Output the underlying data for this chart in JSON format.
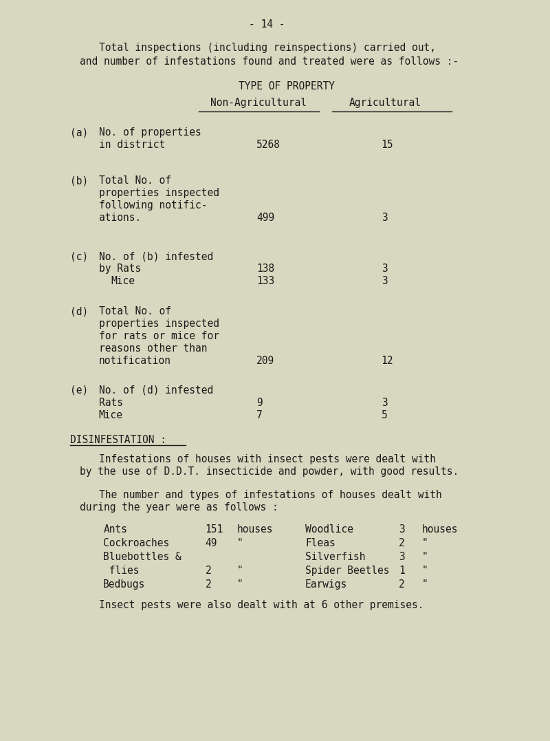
{
  "bg_color": "#d8d8c0",
  "text_color": "#1a1a1a",
  "page_number": "- 14 -",
  "intro_line1": "Total inspections (including reinspections) carried out,",
  "intro_line2": "and number of infestations found and treated were as follows :-",
  "header_type": "TYPE OF PROPERTY",
  "col1_header": "Non-Agricultural",
  "col2_header": "Agricultural",
  "disinf_header": "DISINFESTATION :",
  "disinf_para1_line1": "Infestations of houses with insect pests were dealt with",
  "disinf_para1_line2": "by the use of D.D.T. insecticide and powder, with good results.",
  "disinf_para2_line1": "The number and types of infestations of houses dealt with",
  "disinf_para2_line2": "during the year were as follows :",
  "pests_left": [
    {
      "name": "Ants",
      "count": "151",
      "unit": "houses"
    },
    {
      "name": "Cockroaches",
      "count": "49",
      "unit": "\""
    },
    {
      "name": "Bluebottles &",
      "count": "",
      "unit": ""
    },
    {
      "name": " flies",
      "count": "2",
      "unit": "\""
    },
    {
      "name": "Bedbugs",
      "count": "2",
      "unit": "\""
    }
  ],
  "pests_right": [
    {
      "name": "Woodlice",
      "count": "3",
      "unit": "houses"
    },
    {
      "name": "Fleas",
      "count": "2",
      "unit": "\""
    },
    {
      "name": "Silverfish",
      "count": "3",
      "unit": "\""
    },
    {
      "name": "Spider Beetles",
      "count": "1",
      "unit": "\""
    },
    {
      "name": "Earwigs",
      "count": "2",
      "unit": "\""
    }
  ],
  "footer_line": "Insect pests were also dealt with at 6 other premises.",
  "font_family": "monospace",
  "font_size": 10.5
}
